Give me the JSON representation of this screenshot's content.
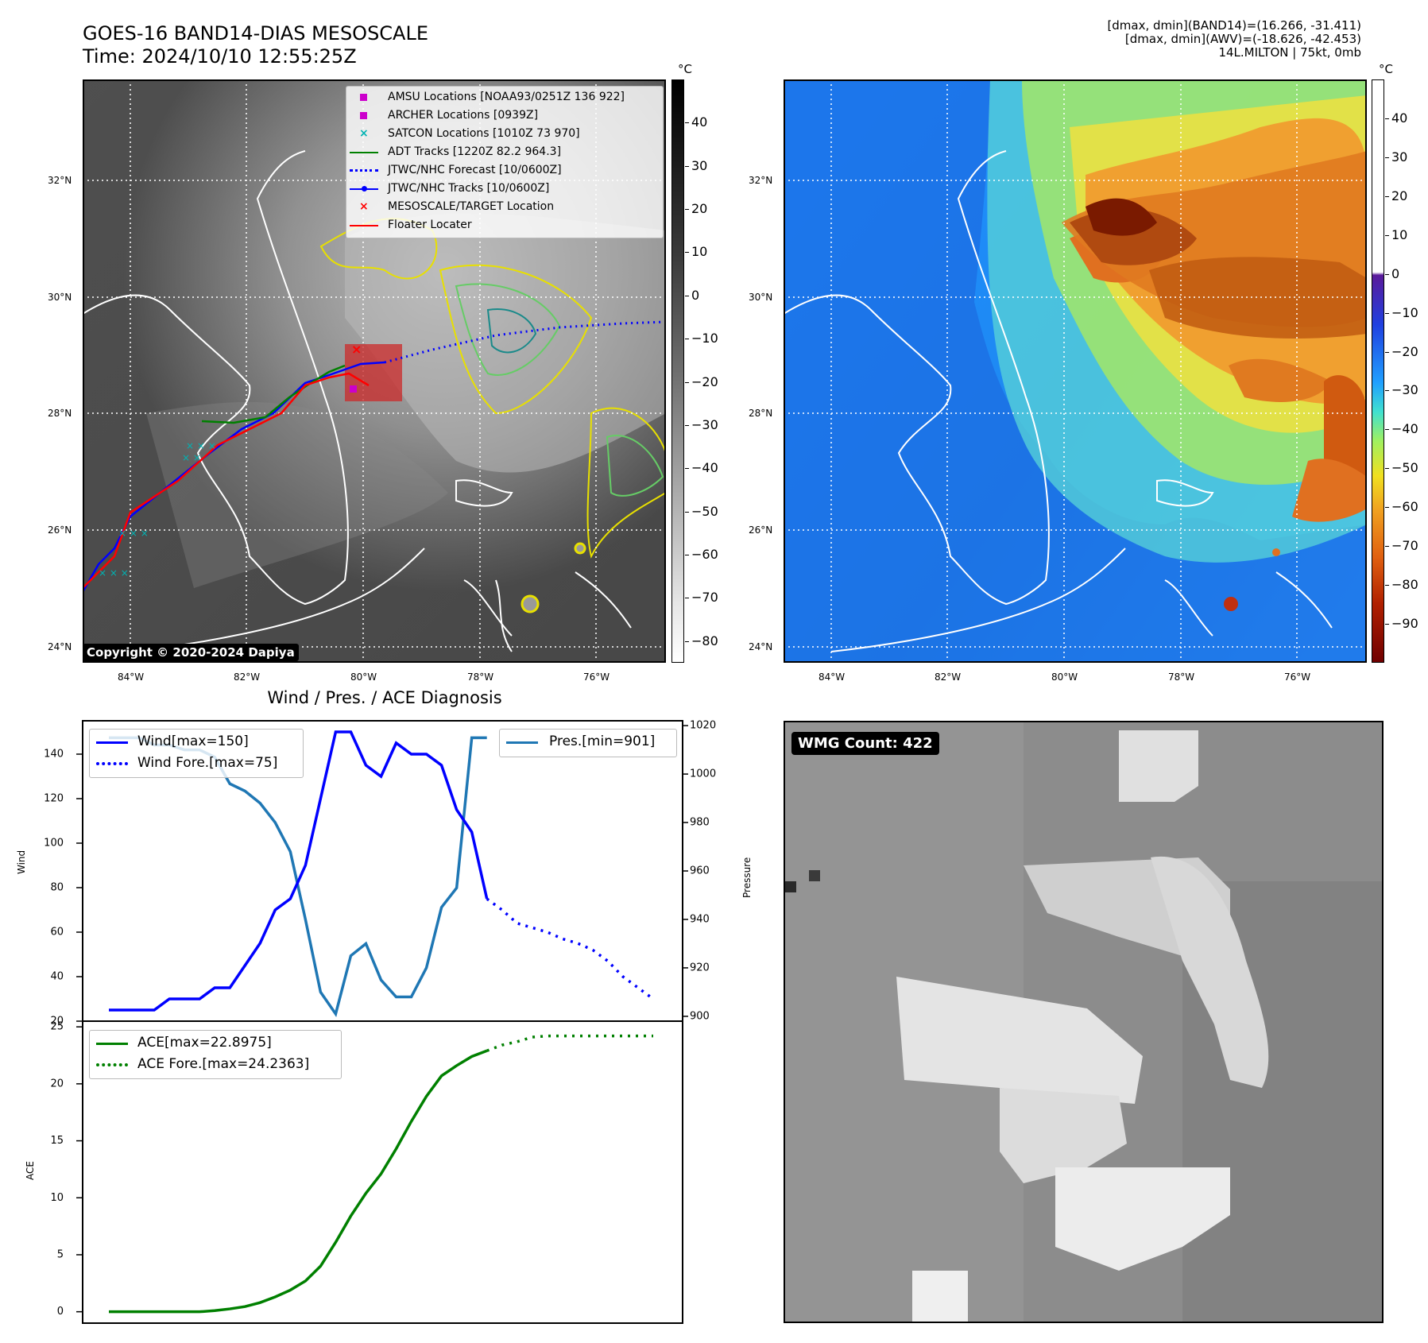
{
  "header": {
    "title_line1": "GOES-16 BAND14-DIAS MESOSCALE",
    "title_line2": "Time: 2024/10/10 12:55:25Z",
    "info_line1": "[dmax, dmin](BAND14)=(16.266, -31.411)",
    "info_line2": "[dmax, dmin](AWV)=(-18.626, -42.453)",
    "info_line3": "14L.MILTON | 75kt, 0mb"
  },
  "map_common": {
    "lat_labels": [
      "32°N",
      "30°N",
      "28°N",
      "26°N",
      "24°N"
    ],
    "lon_labels": [
      "84°W",
      "82°W",
      "80°W",
      "78°W",
      "76°W"
    ],
    "lon_range": [
      -84.8,
      -74.8
    ],
    "lat_range": [
      23.8,
      33.8
    ],
    "colorbar_unit": "°C"
  },
  "ir_panel": {
    "colorbar_ticks": [
      "40",
      "30",
      "20",
      "10",
      "0",
      "−10",
      "−20",
      "−30",
      "−40",
      "−50",
      "−60",
      "−70",
      "−80"
    ],
    "colorbar_range": [
      -85,
      50
    ],
    "copyright": "Copyright © 2020-2024 Dapiya",
    "legend": [
      {
        "label": "AMSU Locations [NOAA93/0251Z 136 922]",
        "color": "#cc00cc",
        "symbol": "square"
      },
      {
        "label": "ARCHER Locations [0939Z]",
        "color": "#cc00cc",
        "symbol": "square"
      },
      {
        "label": "SATCON Locations [1010Z 73 970]",
        "color": "#00b3b3",
        "symbol": "x"
      },
      {
        "label": "ADT Tracks [1220Z 82.2 964.3]",
        "color": "#008000",
        "symbol": "line"
      },
      {
        "label": "JTWC/NHC Forecast [10/0600Z]",
        "color": "#0000ff",
        "symbol": "dotted"
      },
      {
        "label": "JTWC/NHC Tracks [10/0600Z]",
        "color": "#0000ff",
        "symbol": "line-dot"
      },
      {
        "label": "MESOSCALE/TARGET Location",
        "color": "#ff0000",
        "symbol": "x"
      },
      {
        "label": "Floater Locater",
        "color": "#ff0000",
        "symbol": "line"
      }
    ]
  },
  "wv_panel": {
    "colorbar_ticks": [
      "40",
      "30",
      "20",
      "10",
      "0",
      "−10",
      "−20",
      "−30",
      "−40",
      "−50",
      "−60",
      "−70",
      "−80",
      "−90"
    ],
    "colorbar_range": [
      -100,
      50
    ]
  },
  "diag_panel": {
    "title": "Wind / Pres. / ACE Diagnosis",
    "wind_ylabel": "Wind",
    "pres_ylabel": "Pressure",
    "ace_ylabel": "ACE",
    "wind_yticks": [
      "20",
      "40",
      "60",
      "80",
      "100",
      "120",
      "140"
    ],
    "pres_yticks": [
      "900",
      "920",
      "940",
      "960",
      "980",
      "1000",
      "1020"
    ],
    "ace_yticks": [
      "0",
      "5",
      "10",
      "15",
      "20",
      "25"
    ],
    "legend_wind": "Wind[max=150]",
    "legend_wind_fore": "Wind Fore.[max=75]",
    "legend_pres": "Pres.[min=901]",
    "legend_ace": "ACE[max=22.8975]",
    "legend_ace_fore": "ACE Fore.[max=24.2363]"
  },
  "wmg_panel": {
    "label": "WMG Count: 422"
  },
  "chart_data": [
    {
      "type": "line",
      "title": "Wind / Pres. / ACE Diagnosis",
      "xlabel": "",
      "ylabel": "Wind",
      "ylim": [
        20,
        155
      ],
      "x": [
        0,
        1,
        2,
        3,
        4,
        5,
        6,
        7,
        8,
        9,
        10,
        11,
        12,
        13,
        14,
        15,
        16,
        17,
        18,
        19,
        20,
        21,
        22,
        23,
        24,
        25
      ],
      "series": [
        {
          "name": "Wind[max=150]",
          "color": "#0000ff",
          "style": "solid",
          "values": [
            25,
            25,
            25,
            25,
            30,
            30,
            30,
            35,
            35,
            45,
            55,
            70,
            75,
            90,
            120,
            150,
            150,
            135,
            130,
            145,
            140,
            140,
            135,
            115,
            105,
            75
          ]
        },
        {
          "name": "Wind Fore.[max=75]",
          "color": "#0000ff",
          "style": "dotted",
          "x": [
            25,
            26,
            27,
            28,
            29,
            30,
            31,
            32,
            33,
            34,
            35,
            36
          ],
          "values": [
            75,
            70,
            64,
            62,
            60,
            57,
            55,
            52,
            47,
            40,
            35,
            30
          ]
        }
      ]
    },
    {
      "type": "line",
      "ylabel": "Pressure",
      "ylim": [
        898,
        1022
      ],
      "x": [
        0,
        1,
        2,
        3,
        4,
        5,
        6,
        7,
        8,
        9,
        10,
        11,
        12,
        13,
        14,
        15,
        16,
        17,
        18,
        19,
        20,
        21,
        22,
        23,
        24,
        25
      ],
      "series": [
        {
          "name": "Pres.[min=901]",
          "color": "#1f77b4",
          "style": "solid",
          "values": [
            1015,
            1015,
            1015,
            1012,
            1012,
            1010,
            1010,
            1007,
            996,
            993,
            988,
            980,
            968,
            940,
            910,
            901,
            925,
            930,
            915,
            908,
            908,
            920,
            945,
            953,
            1015,
            1015
          ]
        }
      ]
    },
    {
      "type": "line",
      "ylabel": "ACE",
      "ylim": [
        -1,
        25.5
      ],
      "x": [
        0,
        1,
        2,
        3,
        4,
        5,
        6,
        7,
        8,
        9,
        10,
        11,
        12,
        13,
        14,
        15,
        16,
        17,
        18,
        19,
        20,
        21,
        22,
        23,
        24,
        25
      ],
      "series": [
        {
          "name": "ACE[max=22.8975]",
          "color": "#008000",
          "style": "solid",
          "values": [
            0,
            0,
            0,
            0,
            0,
            0,
            0,
            0.1,
            0.25,
            0.45,
            0.8,
            1.3,
            1.9,
            2.7,
            4.0,
            6.1,
            8.4,
            10.4,
            12.1,
            14.3,
            16.7,
            18.9,
            20.7,
            21.6,
            22.4,
            22.9
          ]
        },
        {
          "name": "ACE Fore.[max=24.2363]",
          "color": "#008000",
          "style": "dotted",
          "x": [
            25,
            26,
            27,
            28,
            29,
            30,
            31,
            32,
            33,
            34,
            35,
            36
          ],
          "values": [
            22.9,
            23.4,
            23.7,
            24.1,
            24.2,
            24.2,
            24.2,
            24.2,
            24.2,
            24.2,
            24.2,
            24.2
          ]
        }
      ]
    }
  ]
}
